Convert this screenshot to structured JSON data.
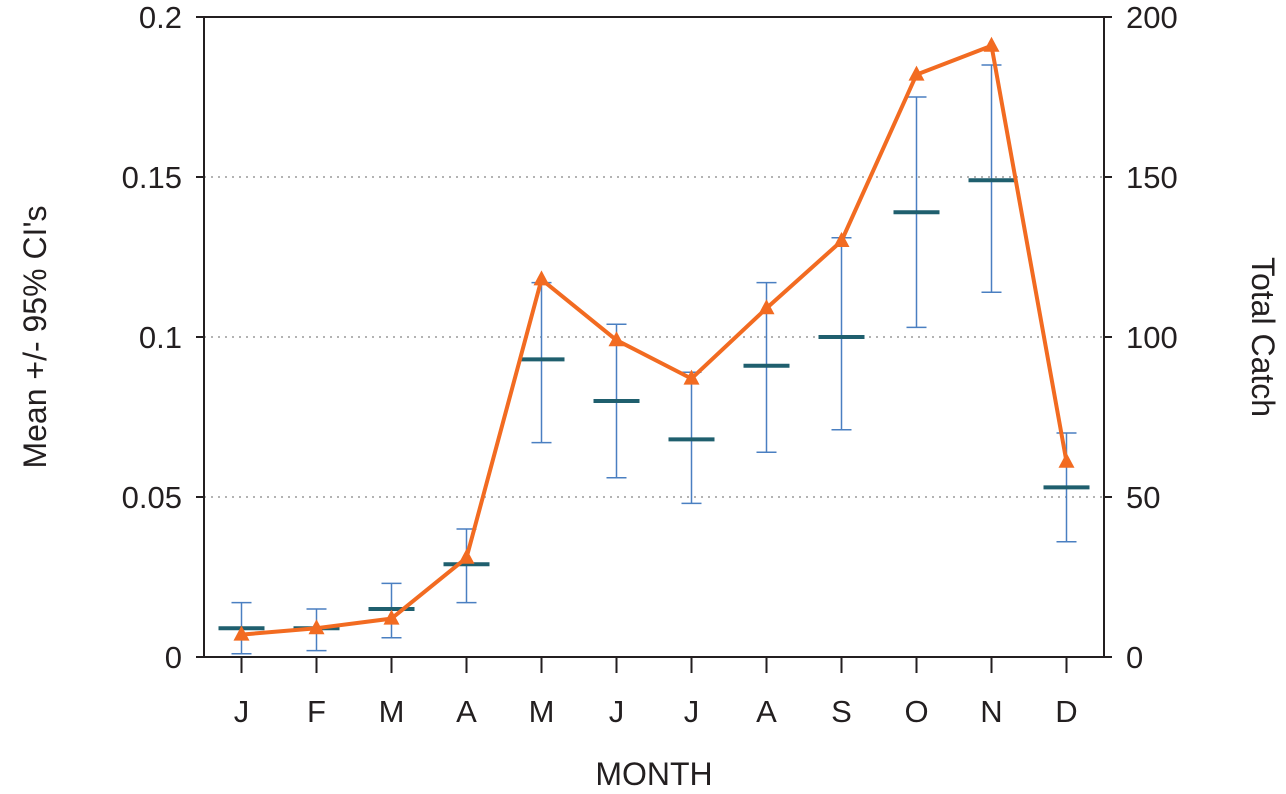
{
  "chart_data": {
    "type": "line",
    "title": "",
    "xlabel": "MONTH",
    "ylabel_left": "Mean +/- 95% CI's",
    "ylabel_right": "Total Catch",
    "categories": [
      "J",
      "F",
      "M",
      "A",
      "M",
      "J",
      "J",
      "A",
      "S",
      "O",
      "N",
      "D"
    ],
    "ylim_left": [
      0,
      0.2
    ],
    "ylim_right": [
      0,
      200
    ],
    "yticks_left": [
      "0",
      "0.05",
      "0.1",
      "0.15",
      "0.2"
    ],
    "yticks_right": [
      "0",
      "50",
      "100",
      "150",
      "200"
    ],
    "grid": "horizontal dotted",
    "series": [
      {
        "axis": "left",
        "kind": "mean with 95% CI",
        "mean": [
          0.009,
          0.009,
          0.015,
          0.029,
          0.093,
          0.08,
          0.068,
          0.091,
          0.1,
          0.139,
          0.149,
          0.053
        ],
        "lower": [
          0.001,
          0.002,
          0.006,
          0.017,
          0.067,
          0.056,
          0.048,
          0.064,
          0.071,
          0.103,
          0.114,
          0.036
        ],
        "upper": [
          0.017,
          0.015,
          0.023,
          0.04,
          0.117,
          0.104,
          0.089,
          0.117,
          0.131,
          0.175,
          0.185,
          0.07
        ],
        "colors": {
          "mean": "#1f5f6e",
          "ci": "#4a7fc1"
        }
      },
      {
        "axis": "right",
        "kind": "total catch line",
        "values": [
          7,
          9,
          12,
          31,
          118,
          99,
          87,
          109,
          130,
          182,
          191,
          61
        ],
        "color": "#f26b21"
      }
    ]
  }
}
